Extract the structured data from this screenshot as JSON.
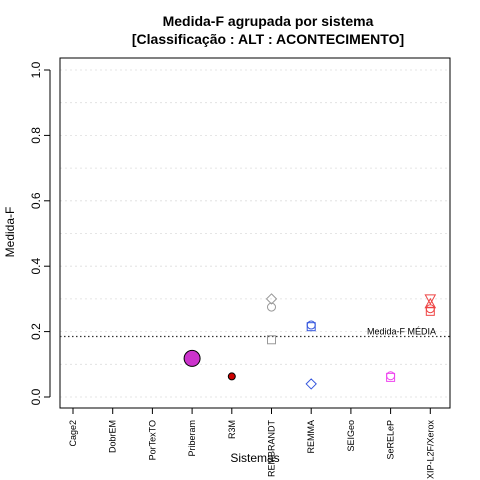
{
  "chart_data": {
    "type": "scatter",
    "title": "Medida-F agrupada por sistema",
    "subtitle": "[Classificação : ALT : ACONTECIMENTO]",
    "xlabel": "Sistemas",
    "ylabel": "Medida-F",
    "ylim": [
      0,
      1
    ],
    "yticks": [
      "0.0",
      "0.2",
      "0.4",
      "0.6",
      "0.8",
      "1.0"
    ],
    "grid": true,
    "categories": [
      "Cage2",
      "DobrEM",
      "PorTexTO",
      "Priberam",
      "R3M",
      "REMBRANDT",
      "REMMA",
      "SEIGeo",
      "SeRELeP",
      "XIP-L2F/Xerox"
    ],
    "reference_line": {
      "value": 0.185,
      "label": "Medida-F MÉDIA"
    },
    "points": [
      {
        "category": "Priberam",
        "value": 0.118,
        "shape": "circle-large",
        "color": "#cc33cc"
      },
      {
        "category": "R3M",
        "value": 0.063,
        "shape": "circle-filled",
        "color": "#cc0000"
      },
      {
        "category": "REMBRANDT",
        "value": 0.3,
        "shape": "diamond",
        "color": "#999999"
      },
      {
        "category": "REMBRANDT",
        "value": 0.275,
        "shape": "circle",
        "color": "#999999"
      },
      {
        "category": "REMBRANDT",
        "value": 0.175,
        "shape": "square",
        "color": "#999999"
      },
      {
        "category": "REMMA",
        "value": 0.22,
        "shape": "circle",
        "color": "#3355dd"
      },
      {
        "category": "REMMA",
        "value": 0.215,
        "shape": "square",
        "color": "#3355dd"
      },
      {
        "category": "REMMA",
        "value": 0.04,
        "shape": "diamond",
        "color": "#3355dd"
      },
      {
        "category": "SeRELeP",
        "value": 0.065,
        "shape": "circle",
        "color": "#ee44ee"
      },
      {
        "category": "SeRELeP",
        "value": 0.06,
        "shape": "square",
        "color": "#ee44ee"
      },
      {
        "category": "XIP-L2F/Xerox",
        "value": 0.3,
        "shape": "triangle-down",
        "color": "#ee4444"
      },
      {
        "category": "XIP-L2F/Xerox",
        "value": 0.285,
        "shape": "triangle-up",
        "color": "#ee4444"
      },
      {
        "category": "XIP-L2F/Xerox",
        "value": 0.27,
        "shape": "circle",
        "color": "#ee4444"
      },
      {
        "category": "XIP-L2F/Xerox",
        "value": 0.262,
        "shape": "square",
        "color": "#ee4444"
      }
    ]
  }
}
